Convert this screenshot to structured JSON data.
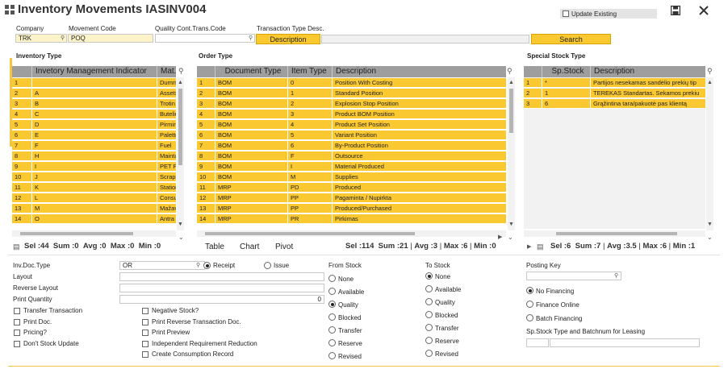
{
  "window": {
    "title": "Inventory Movements IASINV004",
    "update_existing_label": "Update Existing"
  },
  "top": {
    "company_label": "Company",
    "company_value": "TRK",
    "movement_code_label": "Movement Code",
    "movement_code_value": "POQ",
    "quality_label": "Quality Cont.Trans.Code",
    "quality_value": "",
    "trans_type_label": "Transaction Type Desc.",
    "description_button": "Description",
    "search_button": "Search"
  },
  "inventory_type": {
    "title": "Inventory Type",
    "headers": [
      "Invetory Management Indicator",
      "Mat.T"
    ],
    "rows": [
      [
        "1",
        "",
        "Dumm"
      ],
      [
        "2",
        "A",
        "Assets"
      ],
      [
        "3",
        "B",
        "Trotin"
      ],
      [
        "4",
        "C",
        "Buteliu"
      ],
      [
        "5",
        "D",
        "Pirmin"
      ],
      [
        "6",
        "E",
        "Palette"
      ],
      [
        "7",
        "F",
        "Fuel"
      ],
      [
        "8",
        "H",
        "Mainta"
      ],
      [
        "9",
        "I",
        "PET P"
      ],
      [
        "10",
        "J",
        "Scrap"
      ],
      [
        "11",
        "K",
        "Station"
      ],
      [
        "12",
        "L",
        "Consu"
      ],
      [
        "13",
        "M",
        "Mažav"
      ],
      [
        "14",
        "O",
        "Antra"
      ]
    ],
    "stats": {
      "sel": "Sel :44",
      "sum": "Sum :0",
      "avg": "Avg :0",
      "max": "Max :0",
      "min": "Min :0"
    }
  },
  "order_type": {
    "title": "Order Type",
    "headers": [
      "Document Type",
      "Item Type",
      "Description"
    ],
    "rows": [
      [
        "1",
        "BOM",
        "0",
        "Position With Costing"
      ],
      [
        "2",
        "BOM",
        "1",
        "Standard Position"
      ],
      [
        "3",
        "BOM",
        "2",
        "Explosion Stop Position"
      ],
      [
        "4",
        "BOM",
        "3",
        "Product BOM Position"
      ],
      [
        "5",
        "BOM",
        "4",
        "Product Set Position"
      ],
      [
        "6",
        "BOM",
        "5",
        "Variant Position"
      ],
      [
        "7",
        "BOM",
        "6",
        "By-Product Position"
      ],
      [
        "8",
        "BOM",
        "F",
        "Outsource"
      ],
      [
        "9",
        "BOM",
        "I",
        "Material Produced"
      ],
      [
        "10",
        "BOM",
        "M",
        "Supplies"
      ],
      [
        "11",
        "MRP",
        "PD",
        "Produced"
      ],
      [
        "12",
        "MRP",
        "PP",
        "Pagaminta / Nupirkta"
      ],
      [
        "13",
        "MRP",
        "PP",
        "Produced/Purchased"
      ],
      [
        "14",
        "MRP",
        "PR",
        "Pirkimas"
      ]
    ],
    "tabs": [
      "Table",
      "Chart",
      "Pivot"
    ],
    "stats": {
      "sel": "Sel :114",
      "sum": "Sum :21",
      "avg": "Avg :3",
      "max": "Max :6",
      "min": "Min :0"
    }
  },
  "special_stock": {
    "title": "Special Stock Type",
    "headers": [
      "Sp.Stock",
      "Description"
    ],
    "rows": [
      [
        "1",
        "*",
        "Partijos nesekamas sandėlio prekių tip"
      ],
      [
        "2",
        "1",
        "TEREKAS Standartas. Sekamos prekiu"
      ],
      [
        "3",
        "6",
        "Grąžintina tara/pakuotė pas klientą"
      ]
    ],
    "stats": {
      "sel": "Sel :6",
      "sum": "Sum :7",
      "avg": "Avg :3.5",
      "max": "Max :6",
      "min": "Min :1"
    }
  },
  "form": {
    "inv_doc_type_label": "Inv.Doc.Type",
    "inv_doc_type_value": "OR",
    "receipt_label": "Receipt",
    "issue_label": "Issue",
    "layout_label": "Layout",
    "reverse_layout_label": "Reverse Layout",
    "print_quantity_label": "Print Quantity",
    "print_quantity_value": "0",
    "checks_left": [
      "Transfer Transaction",
      "Print Doc.",
      "Pricing?",
      "Don't Stock Update"
    ],
    "checks_mid": [
      "Negative Stock?",
      "Print Reverse Transaction Doc.",
      "Print Preview",
      "Independent Requirement Reduction",
      "Create Consumption Record"
    ],
    "from_stock_label": "From Stock",
    "from_stock_options": [
      "None",
      "Available",
      "Quality",
      "Blocked",
      "Transfer",
      "Reserve",
      "Revised"
    ],
    "to_stock_label": "To Stock",
    "to_stock_options": [
      "None",
      "Available",
      "Quality",
      "Blocked",
      "Transfer",
      "Reserve",
      "Revised"
    ],
    "posting_key_label": "Posting Key",
    "financing_options": [
      "No Financing",
      "Finance Online",
      "Batch Financing"
    ],
    "sp_stock_batch_label": "Sp.Stock Type and Batchnum for Leasing"
  }
}
